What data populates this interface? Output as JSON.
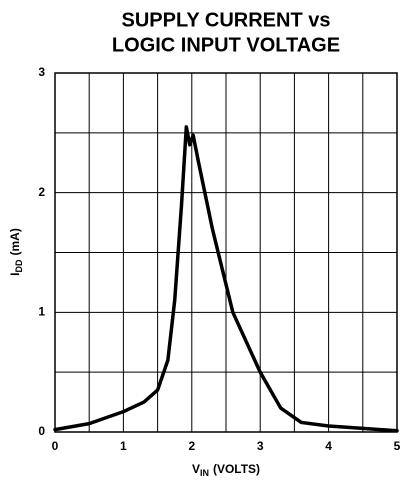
{
  "chart_data": {
    "type": "line",
    "title": [
      "SUPPLY CURRENT vs",
      "LOGIC INPUT VOLTAGE"
    ],
    "x_label": {
      "main": "V",
      "sub": "IN",
      "unit": "(VOLTS)"
    },
    "y_label": {
      "main": "I",
      "sub": "DD",
      "unit": "(mA)"
    },
    "x": [
      0,
      0.5,
      1,
      1.3,
      1.5,
      1.65,
      1.75,
      1.85,
      1.92,
      1.97,
      2.02,
      2.1,
      2.3,
      2.6,
      3,
      3.3,
      3.6,
      4,
      4.5,
      5
    ],
    "series": [
      {
        "color": "#000000",
        "values": [
          0.02,
          0.07,
          0.17,
          0.25,
          0.35,
          0.6,
          1.1,
          1.9,
          2.55,
          2.4,
          2.48,
          2.25,
          1.7,
          1.0,
          0.5,
          0.2,
          0.08,
          0.05,
          0.03,
          0.01
        ]
      }
    ],
    "xlim": [
      0,
      5
    ],
    "ylim": [
      0,
      3
    ],
    "xticks": [
      0,
      1,
      2,
      3,
      4,
      5
    ],
    "yticks": [
      0,
      1,
      2,
      3
    ],
    "minor_xgrid": [
      0.5,
      1.5,
      2.5,
      3.5,
      4.5
    ],
    "minor_ygrid": [
      0.5,
      1.5,
      2.5
    ],
    "grid": true
  }
}
